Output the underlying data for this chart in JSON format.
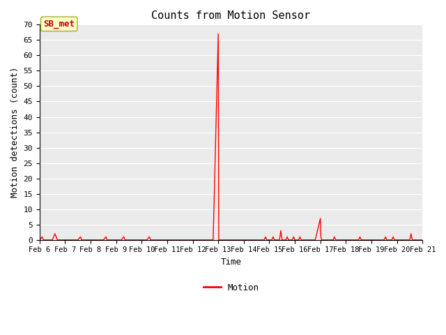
{
  "title": "Counts from Motion Sensor",
  "xlabel": "Time",
  "ylabel": "Motion detections (count)",
  "line_color": "#ff0000",
  "line_label": "Motion",
  "annotation_label": "SB_met",
  "annotation_text_color": "#cc0000",
  "annotation_bg_color": "#ffffcc",
  "annotation_border_color": "#aaa830",
  "ylim": [
    0,
    70
  ],
  "yticks": [
    0,
    5,
    10,
    15,
    20,
    25,
    30,
    35,
    40,
    45,
    50,
    55,
    60,
    65,
    70
  ],
  "bg_color": "#ebebeb",
  "x_start_day": 6,
  "x_end_day": 21,
  "data_points": [
    [
      6.0,
      0
    ],
    [
      6.1,
      1
    ],
    [
      6.15,
      0
    ],
    [
      6.5,
      0
    ],
    [
      6.6,
      2
    ],
    [
      6.65,
      1
    ],
    [
      6.7,
      0
    ],
    [
      7.5,
      0
    ],
    [
      7.6,
      1
    ],
    [
      7.65,
      0
    ],
    [
      8.5,
      0
    ],
    [
      8.6,
      1
    ],
    [
      8.65,
      0
    ],
    [
      9.2,
      0
    ],
    [
      9.3,
      1
    ],
    [
      9.35,
      0
    ],
    [
      10.2,
      0
    ],
    [
      10.3,
      1
    ],
    [
      10.35,
      0
    ],
    [
      11.0,
      0
    ],
    [
      12.0,
      0
    ],
    [
      12.8,
      0
    ],
    [
      13.0,
      67
    ],
    [
      13.02,
      0
    ],
    [
      14.0,
      0
    ],
    [
      14.8,
      0
    ],
    [
      14.85,
      1
    ],
    [
      14.9,
      0
    ],
    [
      15.1,
      0
    ],
    [
      15.15,
      1
    ],
    [
      15.2,
      0
    ],
    [
      15.4,
      0
    ],
    [
      15.45,
      3
    ],
    [
      15.5,
      0
    ],
    [
      15.65,
      0
    ],
    [
      15.7,
      1
    ],
    [
      15.75,
      0
    ],
    [
      15.9,
      0
    ],
    [
      15.95,
      1
    ],
    [
      16.0,
      0
    ],
    [
      16.15,
      0
    ],
    [
      16.2,
      1
    ],
    [
      16.25,
      0
    ],
    [
      16.8,
      0
    ],
    [
      17.0,
      7
    ],
    [
      17.02,
      1
    ],
    [
      17.05,
      0
    ],
    [
      17.5,
      0
    ],
    [
      17.55,
      1
    ],
    [
      17.6,
      0
    ],
    [
      18.0,
      0
    ],
    [
      18.5,
      0
    ],
    [
      18.55,
      1
    ],
    [
      18.6,
      0
    ],
    [
      19.0,
      0
    ],
    [
      19.5,
      0
    ],
    [
      19.55,
      1
    ],
    [
      19.6,
      0
    ],
    [
      19.8,
      0
    ],
    [
      19.85,
      1
    ],
    [
      19.9,
      0
    ],
    [
      20.0,
      0
    ],
    [
      20.5,
      0
    ],
    [
      20.55,
      2
    ],
    [
      20.6,
      0
    ],
    [
      21.0,
      0
    ]
  ],
  "xtick_labels": [
    "Feb 6",
    "Feb 7",
    "Feb 8",
    "Feb 9",
    "Feb 10",
    "Feb 11",
    "Feb 12",
    "Feb 13",
    "Feb 14",
    "Feb 15",
    "Feb 16",
    "Feb 17",
    "Feb 18",
    "Feb 19",
    "Feb 20",
    "Feb 21"
  ],
  "xtick_positions": [
    6,
    7,
    8,
    9,
    10,
    11,
    12,
    13,
    14,
    15,
    16,
    17,
    18,
    19,
    20,
    21
  ]
}
